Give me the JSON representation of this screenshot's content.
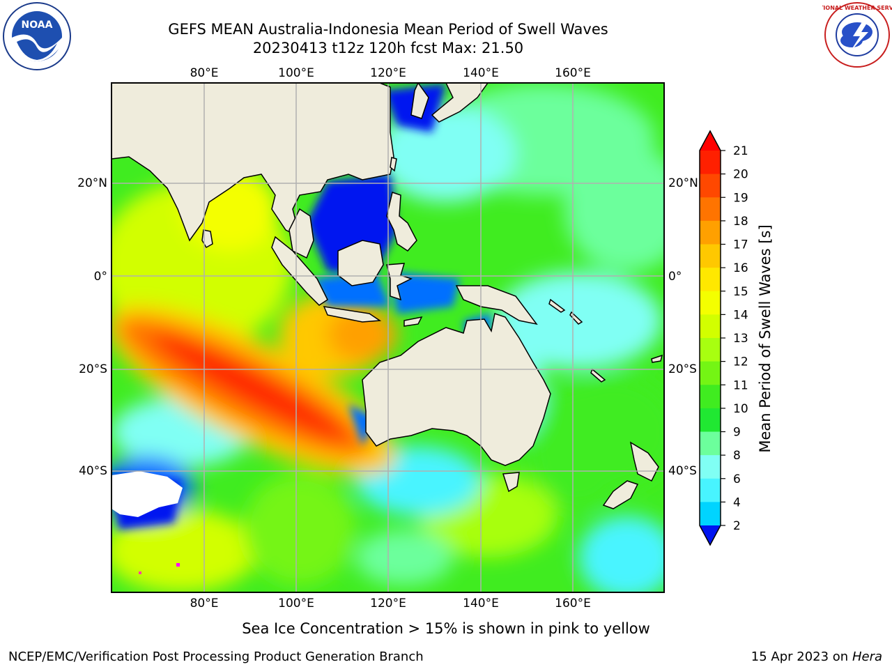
{
  "title_line1": "GEFS MEAN Australia-Indonesia Mean Period of Swell Waves",
  "title_line2": "20230413 t12z 120h fcst   Max: 21.50",
  "map": {
    "lon_ticks_top": [
      "80°E",
      "100°E",
      "120°E",
      "140°E",
      "160°E"
    ],
    "lon_ticks_bottom": [
      "80°E",
      "100°E",
      "120°E",
      "140°E",
      "160°E"
    ],
    "lat_ticks_left": [
      "20°N",
      "0°",
      "20°S",
      "40°S"
    ],
    "lat_ticks_right": [
      "20°N",
      "0°",
      "20°S",
      "40°S"
    ],
    "land_color": "#efecdc",
    "grid_color": "#b0b0b0"
  },
  "colorbar": {
    "label": "Mean Period of Swell Waves [s]",
    "ticks": [
      "21",
      "20",
      "19",
      "18",
      "17",
      "16",
      "15",
      "14",
      "13",
      "12",
      "11",
      "10",
      "9",
      "8",
      "6",
      "4",
      "2"
    ],
    "colors": [
      "#ff2000",
      "#ff4800",
      "#ff7400",
      "#ffa000",
      "#ffc800",
      "#ffe800",
      "#f4ff00",
      "#d2ff00",
      "#a8ff10",
      "#74f514",
      "#40ec20",
      "#20e832",
      "#6cff9c",
      "#80fff4",
      "#48f4ff",
      "#00d4ff",
      "#0070ff"
    ],
    "under_color": "#0014f0",
    "over_color": "#ff0000"
  },
  "sea_ice_note": "Sea Ice Concentration > 15% is shown in pink to yellow",
  "footer_left": "NCEP/EMC/Verification Post Processing Product Generation Branch",
  "footer_right_date": "15 Apr 2023 on",
  "footer_right_machine": "Hera",
  "logos": {
    "noaa_text": "NOAA",
    "nws_text": "NATIONAL WEATHER SERVICE"
  }
}
